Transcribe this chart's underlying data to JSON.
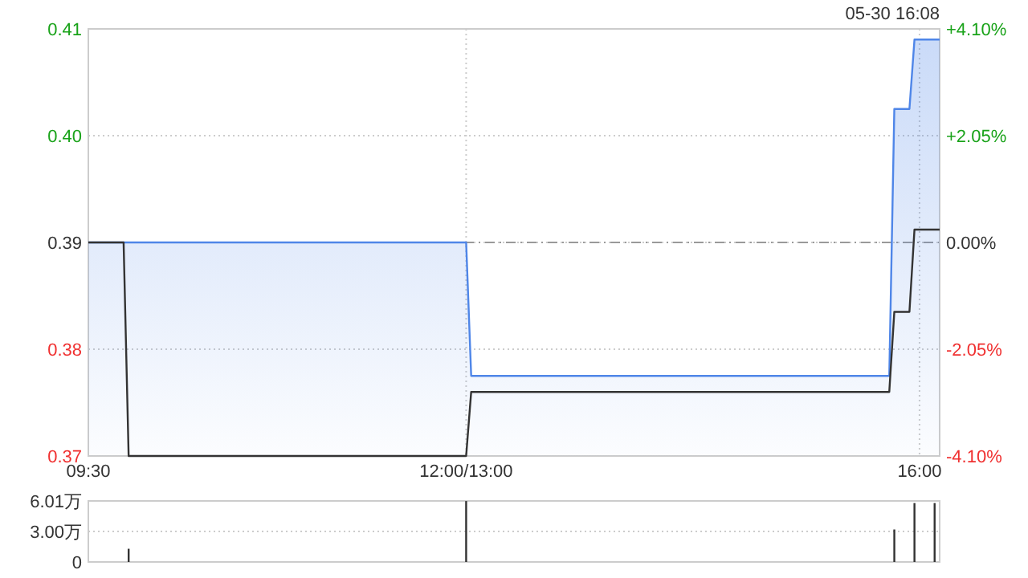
{
  "chart_data": [
    {
      "type": "area",
      "annotations": [
        "05-30 16:08"
      ],
      "categories": [
        "09:30",
        null,
        null,
        null,
        null,
        null,
        null,
        null,
        null,
        null,
        null,
        null,
        null,
        null,
        null,
        null,
        null,
        null,
        null,
        null,
        null,
        null,
        null,
        null,
        null,
        null,
        null,
        null,
        null,
        null,
        null,
        null,
        null,
        null,
        null,
        null,
        null,
        null,
        null,
        null,
        null,
        null,
        null,
        null,
        null,
        null,
        null,
        null,
        null,
        null,
        null,
        null,
        null,
        null,
        null,
        null,
        null,
        null,
        null,
        null,
        null,
        null,
        null,
        null,
        null,
        null,
        null,
        null,
        null,
        null,
        null,
        null,
        null,
        null,
        null,
        "12:00/13:00",
        null,
        null,
        null,
        null,
        null,
        null,
        null,
        null,
        null,
        null,
        null,
        null,
        null,
        null,
        null,
        null,
        null,
        null,
        null,
        null,
        null,
        null,
        null,
        null,
        null,
        null,
        null,
        null,
        null,
        null,
        null,
        null,
        null,
        null,
        null,
        null,
        null,
        null,
        null,
        null,
        null,
        null,
        null,
        null,
        null,
        null,
        null,
        null,
        null,
        null,
        null,
        null,
        null,
        null,
        null,
        null,
        null,
        null,
        null,
        null,
        null,
        null,
        null,
        null,
        null,
        null,
        null,
        null,
        null,
        null,
        null,
        null,
        null,
        null,
        null,
        null,
        null,
        null,
        null,
        null,
        null,
        null,
        null,
        null,
        null,
        null,
        null,
        null,
        null,
        "16:00",
        null,
        null,
        null,
        null
      ],
      "ylim": [
        0.37,
        0.41
      ],
      "yticks": [
        0.37,
        0.38,
        0.39,
        {
          "value": 0.4,
          "label": "0.40"
        },
        0.41
      ],
      "y2lim": [
        -4.1,
        4.1
      ],
      "y2ticks": [
        {
          "value": -4.1,
          "label": "-4.10%"
        },
        {
          "value": -2.05,
          "label": "-2.05%"
        },
        {
          "value": 0,
          "label": "0.00%"
        },
        {
          "value": 2.05,
          "label": "+2.05%"
        },
        {
          "value": 4.1,
          "label": "+4.10%"
        }
      ],
      "grid": true,
      "ref_lines": [
        {
          "axis": "y",
          "value": 0.39,
          "label": null,
          "color": "#999999",
          "line_style": "dashed"
        }
      ],
      "series": [
        {
          "color": "#4f86e8",
          "values": [
            0.39,
            0.39,
            0.39,
            0.39,
            0.39,
            0.39,
            0.39,
            0.39,
            0.39,
            0.39,
            0.39,
            0.39,
            0.39,
            0.39,
            0.39,
            0.39,
            0.39,
            0.39,
            0.39,
            0.39,
            0.39,
            0.39,
            0.39,
            0.39,
            0.39,
            0.39,
            0.39,
            0.39,
            0.39,
            0.39,
            0.39,
            0.39,
            0.39,
            0.39,
            0.39,
            0.39,
            0.39,
            0.39,
            0.39,
            0.39,
            0.39,
            0.39,
            0.39,
            0.39,
            0.39,
            0.39,
            0.39,
            0.39,
            0.39,
            0.39,
            0.39,
            0.39,
            0.39,
            0.39,
            0.39,
            0.39,
            0.39,
            0.39,
            0.39,
            0.39,
            0.39,
            0.39,
            0.39,
            0.39,
            0.39,
            0.39,
            0.39,
            0.39,
            0.39,
            0.39,
            0.39,
            0.39,
            0.39,
            0.39,
            0.39,
            0.39,
            0.3775,
            0.3775,
            0.3775,
            0.3775,
            0.3775,
            0.3775,
            0.3775,
            0.3775,
            0.3775,
            0.3775,
            0.3775,
            0.3775,
            0.3775,
            0.3775,
            0.3775,
            0.3775,
            0.3775,
            0.3775,
            0.3775,
            0.3775,
            0.3775,
            0.3775,
            0.3775,
            0.3775,
            0.3775,
            0.3775,
            0.3775,
            0.3775,
            0.3775,
            0.3775,
            0.3775,
            0.3775,
            0.3775,
            0.3775,
            0.3775,
            0.3775,
            0.3775,
            0.3775,
            0.3775,
            0.3775,
            0.3775,
            0.3775,
            0.3775,
            0.3775,
            0.3775,
            0.3775,
            0.3775,
            0.3775,
            0.3775,
            0.3775,
            0.3775,
            0.3775,
            0.3775,
            0.3775,
            0.3775,
            0.3775,
            0.3775,
            0.3775,
            0.3775,
            0.3775,
            0.3775,
            0.3775,
            0.3775,
            0.3775,
            0.3775,
            0.3775,
            0.3775,
            0.3775,
            0.3775,
            0.3775,
            0.3775,
            0.3775,
            0.3775,
            0.3775,
            0.3775,
            0.3775,
            0.3775,
            0.3775,
            0.3775,
            0.3775,
            0.3775,
            0.3775,
            0.3775,
            0.3775,
            0.4025,
            0.4025,
            0.4025,
            0.4025,
            0.409,
            0.409,
            0.409,
            0.409,
            0.409,
            0.409
          ]
        },
        {
          "type": "line",
          "color": "#333333",
          "values": [
            0.39,
            0.39,
            0.39,
            0.39,
            0.39,
            0.39,
            0.39,
            0.39,
            0.37,
            0.37,
            0.37,
            0.37,
            0.37,
            0.37,
            0.37,
            0.37,
            0.37,
            0.37,
            0.37,
            0.37,
            0.37,
            0.37,
            0.37,
            0.37,
            0.37,
            0.37,
            0.37,
            0.37,
            0.37,
            0.37,
            0.37,
            0.37,
            0.37,
            0.37,
            0.37,
            0.37,
            0.37,
            0.37,
            0.37,
            0.37,
            0.37,
            0.37,
            0.37,
            0.37,
            0.37,
            0.37,
            0.37,
            0.37,
            0.37,
            0.37,
            0.37,
            0.37,
            0.37,
            0.37,
            0.37,
            0.37,
            0.37,
            0.37,
            0.37,
            0.37,
            0.37,
            0.37,
            0.37,
            0.37,
            0.37,
            0.37,
            0.37,
            0.37,
            0.37,
            0.37,
            0.37,
            0.37,
            0.37,
            0.37,
            0.37,
            0.37,
            0.376,
            0.376,
            0.376,
            0.376,
            0.376,
            0.376,
            0.376,
            0.376,
            0.376,
            0.376,
            0.376,
            0.376,
            0.376,
            0.376,
            0.376,
            0.376,
            0.376,
            0.376,
            0.376,
            0.376,
            0.376,
            0.376,
            0.376,
            0.376,
            0.376,
            0.376,
            0.376,
            0.376,
            0.376,
            0.376,
            0.376,
            0.376,
            0.376,
            0.376,
            0.376,
            0.376,
            0.376,
            0.376,
            0.376,
            0.376,
            0.376,
            0.376,
            0.376,
            0.376,
            0.376,
            0.376,
            0.376,
            0.376,
            0.376,
            0.376,
            0.376,
            0.376,
            0.376,
            0.376,
            0.376,
            0.376,
            0.376,
            0.376,
            0.376,
            0.376,
            0.376,
            0.376,
            0.376,
            0.376,
            0.376,
            0.376,
            0.376,
            0.376,
            0.376,
            0.376,
            0.376,
            0.376,
            0.376,
            0.376,
            0.376,
            0.376,
            0.376,
            0.376,
            0.376,
            0.376,
            0.376,
            0.376,
            0.376,
            0.376,
            0.3835,
            0.3835,
            0.3835,
            0.3835,
            0.3912,
            0.3912,
            0.3912,
            0.3912,
            0.3912,
            0.3912
          ]
        }
      ]
    },
    {
      "type": "bar",
      "ylim": [
        0,
        6.01
      ],
      "yticks": [
        0,
        {
          "value": 3,
          "label": "3.00万"
        },
        {
          "value": 6.01,
          "label": "6.01万"
        }
      ],
      "grid": "y",
      "tick_labels": "y",
      "categories": [
        null,
        null,
        null,
        null,
        null,
        null,
        null,
        null,
        null,
        null,
        null,
        null,
        null,
        null,
        null,
        null,
        null,
        null,
        null,
        null,
        null,
        null,
        null,
        null,
        null,
        null,
        null,
        null,
        null,
        null,
        null,
        null,
        null,
        null,
        null,
        null,
        null,
        null,
        null,
        null,
        null,
        null,
        null,
        null,
        null,
        null,
        null,
        null,
        null,
        null,
        null,
        null,
        null,
        null,
        null,
        null,
        null,
        null,
        null,
        null,
        null,
        null,
        null,
        null,
        null,
        null,
        null,
        null,
        null,
        null,
        null,
        null,
        null,
        null,
        null,
        null,
        null,
        null,
        null,
        null,
        null,
        null,
        null,
        null,
        null,
        null,
        null,
        null,
        null,
        null,
        null,
        null,
        null,
        null,
        null,
        null,
        null,
        null,
        null,
        null,
        null,
        null,
        null,
        null,
        null,
        null,
        null,
        null,
        null,
        null,
        null,
        null,
        null,
        null,
        null,
        null,
        null,
        null,
        null,
        null,
        null,
        null,
        null,
        null,
        null,
        null,
        null,
        null,
        null,
        null,
        null,
        null,
        null,
        null,
        null,
        null,
        null,
        null,
        null,
        null,
        null,
        null,
        null,
        null,
        null,
        null,
        null,
        null,
        null,
        null,
        null,
        null,
        null,
        null,
        null,
        null,
        null,
        null,
        null,
        null,
        null,
        null,
        null,
        null,
        null,
        null,
        null,
        null,
        null,
        null
      ],
      "series": [
        {
          "color": "#333333",
          "values": [
            null,
            null,
            null,
            null,
            null,
            null,
            null,
            null,
            1.3,
            null,
            null,
            null,
            null,
            null,
            null,
            null,
            null,
            null,
            null,
            null,
            null,
            null,
            null,
            null,
            null,
            null,
            null,
            null,
            null,
            null,
            null,
            null,
            null,
            null,
            null,
            null,
            null,
            null,
            null,
            null,
            null,
            null,
            null,
            null,
            null,
            null,
            null,
            null,
            null,
            null,
            null,
            null,
            null,
            null,
            null,
            null,
            null,
            null,
            null,
            null,
            null,
            null,
            null,
            null,
            null,
            null,
            null,
            null,
            null,
            null,
            null,
            null,
            null,
            null,
            null,
            6.0,
            null,
            null,
            null,
            null,
            null,
            null,
            null,
            null,
            null,
            null,
            null,
            null,
            null,
            null,
            null,
            null,
            null,
            null,
            null,
            null,
            null,
            null,
            null,
            null,
            null,
            null,
            null,
            null,
            null,
            null,
            null,
            null,
            null,
            null,
            null,
            null,
            null,
            null,
            null,
            null,
            null,
            null,
            null,
            null,
            null,
            null,
            null,
            null,
            null,
            null,
            null,
            null,
            null,
            null,
            null,
            null,
            null,
            null,
            null,
            null,
            null,
            null,
            null,
            null,
            null,
            null,
            null,
            null,
            null,
            null,
            null,
            null,
            null,
            null,
            null,
            null,
            null,
            null,
            null,
            null,
            null,
            null,
            null,
            null,
            3.2,
            null,
            null,
            null,
            5.8,
            null,
            null,
            null,
            5.8,
            null
          ]
        }
      ]
    }
  ]
}
